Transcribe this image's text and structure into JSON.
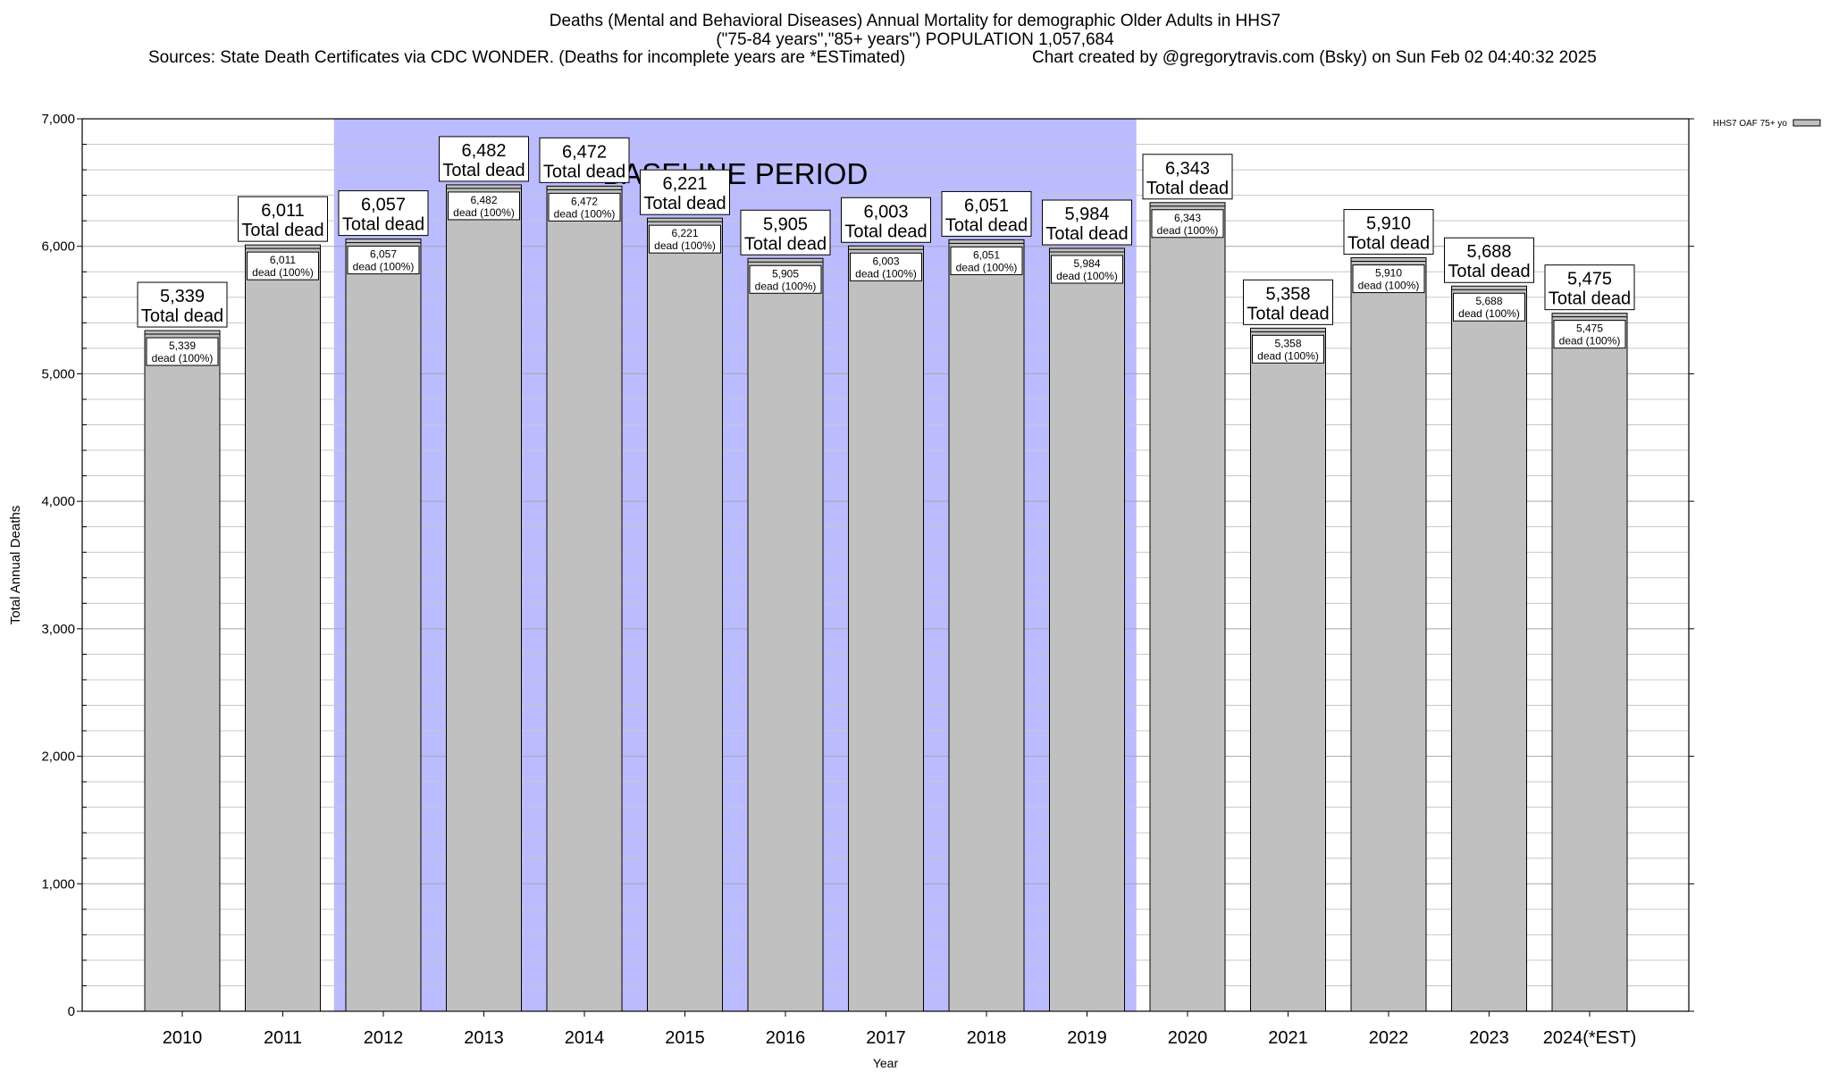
{
  "header": {
    "title_line1": "Deaths (Mental and Behavioral Diseases) Annual Mortality for demographic Older Adults in HHS7",
    "title_line2": "(\"75-84 years\",\"85+ years\") POPULATION 1,057,684",
    "sources": "Sources: State Death Certificates via CDC WONDER. (Deaths for incomplete years are *ESTimated)",
    "credit": "Chart created by @gregorytravis.com (Bsky) on Sun Feb 02 04:40:32 2025"
  },
  "colors": {
    "bar": "#c0c0c0",
    "baseline": "#bbbbff",
    "grid": "#c8c8c8"
  },
  "chart_data": {
    "type": "bar",
    "xlabel": "Year",
    "ylabel": "Total Annual Deaths",
    "ylim": [
      0,
      7000
    ],
    "yticks": [
      "0",
      "1,000",
      "2,000",
      "3,000",
      "4,000",
      "5,000",
      "6,000",
      "7,000"
    ],
    "ytick_values": [
      0,
      1000,
      2000,
      3000,
      4000,
      5000,
      6000,
      7000
    ],
    "categories": [
      "2010",
      "2011",
      "2012",
      "2013",
      "2014",
      "2015",
      "2016",
      "2017",
      "2018",
      "2019",
      "2020",
      "2021",
      "2022",
      "2023",
      "2024(*EST)"
    ],
    "series": [
      {
        "name": "HHS7 OAF 75+ yo",
        "values": [
          5339,
          6011,
          6057,
          6482,
          6472,
          6221,
          5905,
          6003,
          6051,
          5984,
          6343,
          5358,
          5910,
          5688,
          5475
        ]
      }
    ],
    "total_labels": [
      "5,339",
      "6,011",
      "6,057",
      "6,482",
      "6,472",
      "6,221",
      "5,905",
      "6,003",
      "6,051",
      "5,984",
      "6,343",
      "5,358",
      "5,910",
      "5,688",
      "5,475"
    ],
    "total_suffix": "Total dead",
    "inner_labels": [
      "5,339",
      "6,011",
      "6,057",
      "6,482",
      "6,472",
      "6,221",
      "5,905",
      "6,003",
      "6,051",
      "5,984",
      "6,343",
      "5,358",
      "5,910",
      "5,688",
      "5,475"
    ],
    "inner_suffix": "dead (100%)",
    "annotation": {
      "text": "BASELINE PERIOD",
      "from_category": "2012",
      "to_category": "2019"
    },
    "legend_position": "top-right",
    "grid": true
  }
}
